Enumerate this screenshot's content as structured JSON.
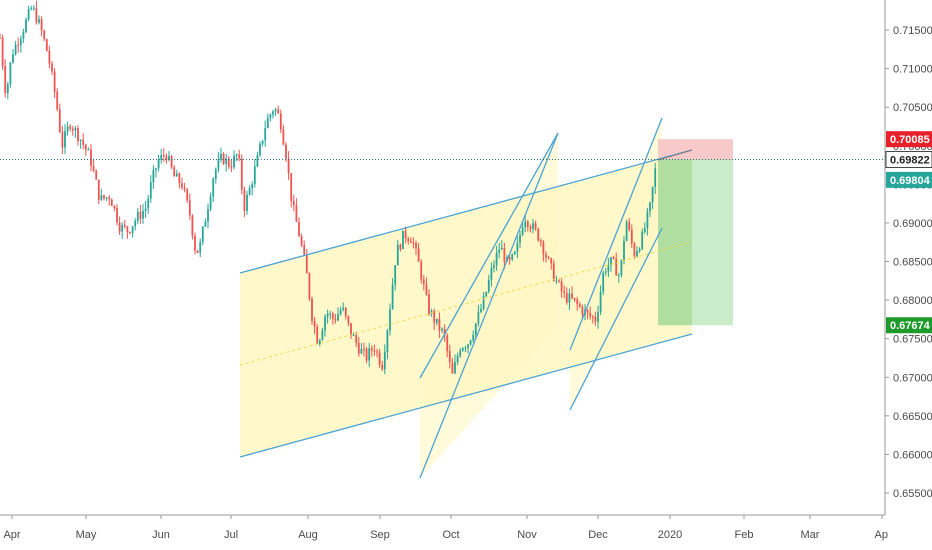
{
  "chart_data": {
    "type": "candlestick",
    "instrument_hint": "price chart with ascending channel drawings and long-position tool",
    "x_ticks": [
      "Apr",
      "May",
      "Jun",
      "Jul",
      "Aug",
      "Sep",
      "Oct",
      "Nov",
      "Dec",
      "2020",
      "Feb",
      "Mar",
      "Ap"
    ],
    "y_ticks": [
      "0.71500",
      "0.71000",
      "0.70500",
      "0.70000",
      "0.69500",
      "0.69000",
      "0.68500",
      "0.68000",
      "0.67500",
      "0.67000",
      "0.66500",
      "0.66000",
      "0.65500"
    ],
    "ylim": [
      0.6525,
      0.7195
    ],
    "grid": false,
    "colors": {
      "up": "#26a69a",
      "down": "#ef5350",
      "channel_line": "#4aa3d6",
      "channel_fill": "#fff7c2",
      "stop_zone": "#f8c9c9",
      "target_zone": "#c9ecc9",
      "target_zone_dark": "#a5d98f",
      "tag_red": "#e8202a",
      "tag_teal": "#26a69a",
      "tag_green": "#1d9a2a",
      "tag_current_bg": "#ffffff"
    },
    "price_tags": [
      {
        "label": "0.70085",
        "value": 0.70085,
        "kind": "stop"
      },
      {
        "label": "0.69822",
        "value": 0.69822,
        "kind": "current"
      },
      {
        "label": "0.69804",
        "value": 0.69804,
        "kind": "last"
      },
      {
        "label": "0.67674",
        "value": 0.67674,
        "kind": "target"
      }
    ],
    "current_price_line": 0.69822,
    "ohlc_anchor_points": [
      {
        "t": 0,
        "v": 0.714
      },
      {
        "t": 6,
        "v": 0.7065
      },
      {
        "t": 12,
        "v": 0.712
      },
      {
        "t": 22,
        "v": 0.7148
      },
      {
        "t": 32,
        "v": 0.718
      },
      {
        "t": 40,
        "v": 0.7155
      },
      {
        "t": 48,
        "v": 0.7118
      },
      {
        "t": 56,
        "v": 0.706
      },
      {
        "t": 62,
        "v": 0.7
      },
      {
        "t": 70,
        "v": 0.703
      },
      {
        "t": 80,
        "v": 0.701
      },
      {
        "t": 90,
        "v": 0.6985
      },
      {
        "t": 100,
        "v": 0.693
      },
      {
        "t": 110,
        "v": 0.6935
      },
      {
        "t": 120,
        "v": 0.6895
      },
      {
        "t": 128,
        "v": 0.689
      },
      {
        "t": 136,
        "v": 0.6905
      },
      {
        "t": 146,
        "v": 0.692
      },
      {
        "t": 152,
        "v": 0.6955
      },
      {
        "t": 158,
        "v": 0.698
      },
      {
        "t": 166,
        "v": 0.699
      },
      {
        "t": 174,
        "v": 0.696
      },
      {
        "t": 182,
        "v": 0.695
      },
      {
        "t": 190,
        "v": 0.691
      },
      {
        "t": 196,
        "v": 0.686
      },
      {
        "t": 200,
        "v": 0.687
      },
      {
        "t": 206,
        "v": 0.691
      },
      {
        "t": 214,
        "v": 0.6965
      },
      {
        "t": 222,
        "v": 0.6985
      },
      {
        "t": 230,
        "v": 0.6975
      },
      {
        "t": 238,
        "v": 0.699
      },
      {
        "t": 244,
        "v": 0.692
      },
      {
        "t": 250,
        "v": 0.6945
      },
      {
        "t": 258,
        "v": 0.6985
      },
      {
        "t": 266,
        "v": 0.703
      },
      {
        "t": 274,
        "v": 0.705
      },
      {
        "t": 280,
        "v": 0.7035
      },
      {
        "t": 286,
        "v": 0.699
      },
      {
        "t": 292,
        "v": 0.6925
      },
      {
        "t": 300,
        "v": 0.688
      },
      {
        "t": 306,
        "v": 0.684
      },
      {
        "t": 312,
        "v": 0.678
      },
      {
        "t": 318,
        "v": 0.6745
      },
      {
        "t": 326,
        "v": 0.6785
      },
      {
        "t": 334,
        "v": 0.6775
      },
      {
        "t": 342,
        "v": 0.679
      },
      {
        "t": 350,
        "v": 0.676
      },
      {
        "t": 358,
        "v": 0.674
      },
      {
        "t": 366,
        "v": 0.6725
      },
      {
        "t": 374,
        "v": 0.674
      },
      {
        "t": 382,
        "v": 0.6715
      },
      {
        "t": 388,
        "v": 0.677
      },
      {
        "t": 396,
        "v": 0.686
      },
      {
        "t": 404,
        "v": 0.6885
      },
      {
        "t": 412,
        "v": 0.688
      },
      {
        "t": 420,
        "v": 0.684
      },
      {
        "t": 428,
        "v": 0.679
      },
      {
        "t": 436,
        "v": 0.677
      },
      {
        "t": 444,
        "v": 0.6755
      },
      {
        "t": 452,
        "v": 0.67
      },
      {
        "t": 460,
        "v": 0.674
      },
      {
        "t": 468,
        "v": 0.6745
      },
      {
        "t": 476,
        "v": 0.677
      },
      {
        "t": 484,
        "v": 0.68
      },
      {
        "t": 492,
        "v": 0.684
      },
      {
        "t": 500,
        "v": 0.687
      },
      {
        "t": 508,
        "v": 0.6845
      },
      {
        "t": 516,
        "v": 0.686
      },
      {
        "t": 524,
        "v": 0.691
      },
      {
        "t": 532,
        "v": 0.6895
      },
      {
        "t": 540,
        "v": 0.688
      },
      {
        "t": 548,
        "v": 0.685
      },
      {
        "t": 556,
        "v": 0.6825
      },
      {
        "t": 564,
        "v": 0.6805
      },
      {
        "t": 572,
        "v": 0.68
      },
      {
        "t": 580,
        "v": 0.679
      },
      {
        "t": 588,
        "v": 0.678
      },
      {
        "t": 596,
        "v": 0.6775
      },
      {
        "t": 604,
        "v": 0.684
      },
      {
        "t": 612,
        "v": 0.685
      },
      {
        "t": 620,
        "v": 0.683
      },
      {
        "t": 626,
        "v": 0.6905
      },
      {
        "t": 634,
        "v": 0.686
      },
      {
        "t": 642,
        "v": 0.688
      },
      {
        "t": 650,
        "v": 0.692
      },
      {
        "t": 656,
        "v": 0.6975
      }
    ]
  }
}
